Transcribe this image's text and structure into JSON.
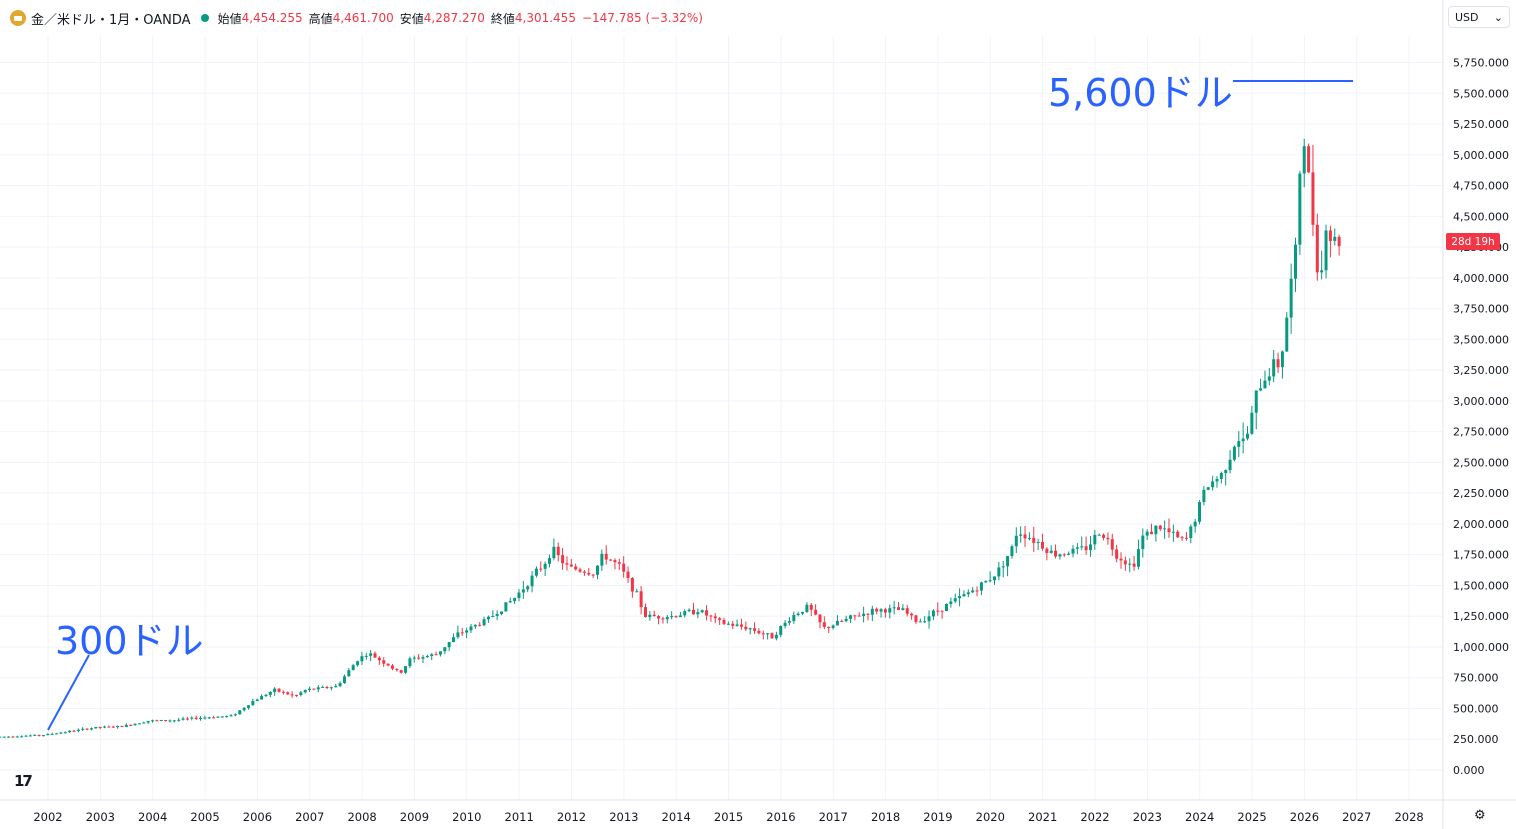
{
  "header": {
    "symbol": "金／米ドル・1月・OANDA",
    "open_label": "始値",
    "open": "4,454.255",
    "high_label": "高値",
    "high": "4,461.700",
    "low_label": "安値",
    "low": "4,287.270",
    "close_label": "終値",
    "close": "4,301.455",
    "change": "−147.785 (−3.32%)"
  },
  "currency": {
    "label": "USD",
    "arrow": "⌄"
  },
  "countdown": "28d 19h",
  "logo": "17",
  "settings_icon": "gear-icon",
  "annotations": {
    "peak": "5,600ドル",
    "start": "300ドル"
  },
  "colors": {
    "up": "#089981",
    "down": "#f23645",
    "annotation": "#2962ff",
    "grid": "#f0f3fa"
  },
  "chart_data": {
    "type": "candlestick",
    "y_ticks": [
      "5,750.000",
      "5,500.000",
      "5,250.000",
      "5,000.000",
      "4,750.000",
      "4,500.000",
      "4,250.000",
      "4,000.000",
      "3,750.000",
      "3,500.000",
      "3,250.000",
      "3,000.000",
      "2,750.000",
      "2,500.000",
      "2,250.000",
      "2,000.000",
      "1,750.000",
      "1,500.000",
      "1,250.000",
      "1,000.000",
      "750.000",
      "500.000",
      "250.000",
      "0.000"
    ],
    "x_ticks": [
      "2002",
      "2003",
      "2004",
      "2005",
      "2006",
      "2007",
      "2008",
      "2009",
      "2010",
      "2011",
      "2012",
      "2013",
      "2014",
      "2015",
      "2016",
      "2017",
      "2018",
      "2019",
      "2020",
      "2021",
      "2022",
      "2023",
      "2024",
      "2025",
      "2026",
      "2027",
      "2028"
    ],
    "ylim": [
      0,
      5750
    ],
    "anchors": [
      [
        2001.2,
        270
      ],
      [
        2002.0,
        285
      ],
      [
        2002.5,
        315
      ],
      [
        2003.0,
        345
      ],
      [
        2003.5,
        355
      ],
      [
        2004.0,
        400
      ],
      [
        2004.5,
        405
      ],
      [
        2005.0,
        425
      ],
      [
        2005.6,
        440
      ],
      [
        2006.0,
        560
      ],
      [
        2006.4,
        650
      ],
      [
        2006.8,
        600
      ],
      [
        2007.0,
        650
      ],
      [
        2007.6,
        680
      ],
      [
        2008.0,
        900
      ],
      [
        2008.2,
        950
      ],
      [
        2008.6,
        850
      ],
      [
        2008.8,
        780
      ],
      [
        2009.0,
        900
      ],
      [
        2009.5,
        940
      ],
      [
        2009.9,
        1100
      ],
      [
        2010.5,
        1230
      ],
      [
        2011.0,
        1400
      ],
      [
        2011.6,
        1700
      ],
      [
        2011.7,
        1800
      ],
      [
        2012.0,
        1650
      ],
      [
        2012.5,
        1600
      ],
      [
        2012.7,
        1750
      ],
      [
        2013.0,
        1650
      ],
      [
        2013.3,
        1450
      ],
      [
        2013.5,
        1250
      ],
      [
        2014.0,
        1250
      ],
      [
        2014.5,
        1300
      ],
      [
        2014.9,
        1200
      ],
      [
        2015.5,
        1150
      ],
      [
        2015.9,
        1080
      ],
      [
        2016.3,
        1250
      ],
      [
        2016.6,
        1330
      ],
      [
        2016.9,
        1150
      ],
      [
        2017.5,
        1250
      ],
      [
        2017.9,
        1300
      ],
      [
        2018.4,
        1300
      ],
      [
        2018.7,
        1200
      ],
      [
        2019.0,
        1280
      ],
      [
        2019.5,
        1400
      ],
      [
        2019.9,
        1500
      ],
      [
        2020.2,
        1600
      ],
      [
        2020.5,
        1800
      ],
      [
        2020.6,
        1950
      ],
      [
        2021.0,
        1850
      ],
      [
        2021.3,
        1750
      ],
      [
        2021.9,
        1800
      ],
      [
        2022.2,
        1950
      ],
      [
        2022.5,
        1750
      ],
      [
        2022.8,
        1650
      ],
      [
        2023.0,
        1900
      ],
      [
        2023.3,
        1980
      ],
      [
        2023.6,
        1900
      ],
      [
        2023.8,
        1850
      ],
      [
        2024.0,
        2050
      ],
      [
        2024.2,
        2300
      ],
      [
        2024.5,
        2400
      ],
      [
        2024.8,
        2700
      ],
      [
        2024.95,
        2650
      ],
      [
        2025.2,
        3100
      ],
      [
        2025.5,
        3300
      ],
      [
        2025.6,
        3300
      ],
      [
        2025.7,
        3500
      ],
      [
        2025.8,
        3900
      ],
      [
        2025.9,
        4100
      ],
      [
        2026.0,
        4900
      ],
      [
        2026.05,
        5300
      ],
      [
        2026.12,
        4900
      ],
      [
        2026.2,
        4700
      ],
      [
        2026.3,
        4200
      ],
      [
        2026.4,
        4000
      ],
      [
        2026.5,
        4450
      ],
      [
        2026.6,
        4300
      ]
    ]
  }
}
